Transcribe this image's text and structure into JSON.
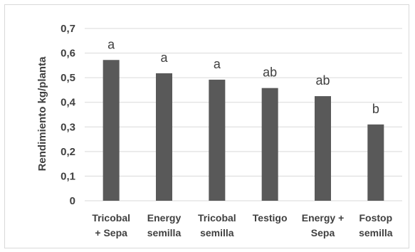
{
  "chart_data": {
    "type": "bar",
    "categories": [
      [
        "Tricobal",
        "+ Sepa"
      ],
      [
        "Energy",
        "semilla"
      ],
      [
        "Tricobal",
        "semilla"
      ],
      [
        "Testigo"
      ],
      [
        "Energy +",
        "Sepa"
      ],
      [
        "Fostop",
        "semilla"
      ]
    ],
    "values": [
      0.572,
      0.518,
      0.492,
      0.458,
      0.425,
      0.31
    ],
    "significance_labels": [
      "a",
      "a",
      "a",
      "ab",
      "ab",
      "b"
    ],
    "ylabel": "Rendimiento kg/planta",
    "ylim": [
      0,
      0.7
    ],
    "yticks": [
      "0",
      "0,1",
      "0,2",
      "0,3",
      "0,4",
      "0,5",
      "0,6",
      "0,7"
    ],
    "grid": true,
    "bar_color": "#595959",
    "grid_color": "#d9d9d9"
  }
}
